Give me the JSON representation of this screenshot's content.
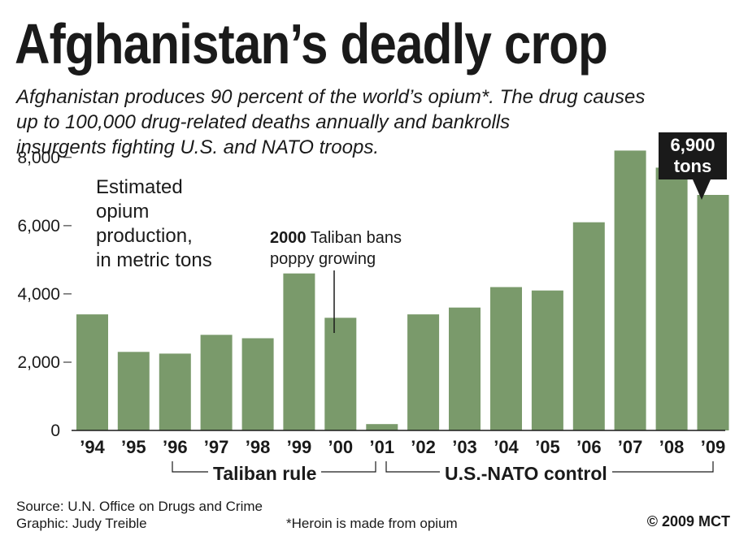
{
  "title": "Afghanistan’s deadly crop",
  "subtitle": [
    "Afghanistan produces 90 percent of the world’s opium*. The drug causes",
    "up to 100,000 drug-related deaths annually and bankrolls",
    "insurgents fighting U.S. and NATO troops."
  ],
  "chart_data": {
    "type": "bar",
    "title": "Estimated opium production, in metric tons",
    "ylabel_lines": [
      "Estimated",
      "opium",
      "production,",
      "in metric tons"
    ],
    "categories": [
      "’94",
      "’95",
      "’96",
      "’97",
      "’98",
      "’99",
      "’00",
      "’01",
      "’02",
      "’03",
      "’04",
      "’05",
      "’06",
      "’07",
      "’08",
      "’09"
    ],
    "values": [
      3400,
      2300,
      2250,
      2800,
      2700,
      4600,
      3300,
      185,
      3400,
      3600,
      4200,
      4100,
      6100,
      8200,
      7700,
      6900
    ],
    "ylim": [
      0,
      8400
    ],
    "yticks": [
      0,
      2000,
      4000,
      6000,
      8000
    ],
    "ytick_labels": [
      "0",
      "2,000",
      "4,000",
      "6,000",
      "8,000"
    ],
    "bar_color": "#7a9a6b",
    "annotations": {
      "taliban_ban": {
        "bold": "2000",
        "line1": "Taliban bans",
        "line2": "poppy growing"
      },
      "callout": {
        "line1": "6,900",
        "line2": "tons"
      }
    },
    "periods": {
      "taliban": "Taliban rule",
      "nato": "U.S.-NATO control"
    }
  },
  "footer": {
    "source": "Source: U.N. Office on Drugs and Crime",
    "graphic": "Graphic: Judy Treible",
    "note": "*Heroin is made from opium",
    "copyright": "© 2009 MCT"
  }
}
